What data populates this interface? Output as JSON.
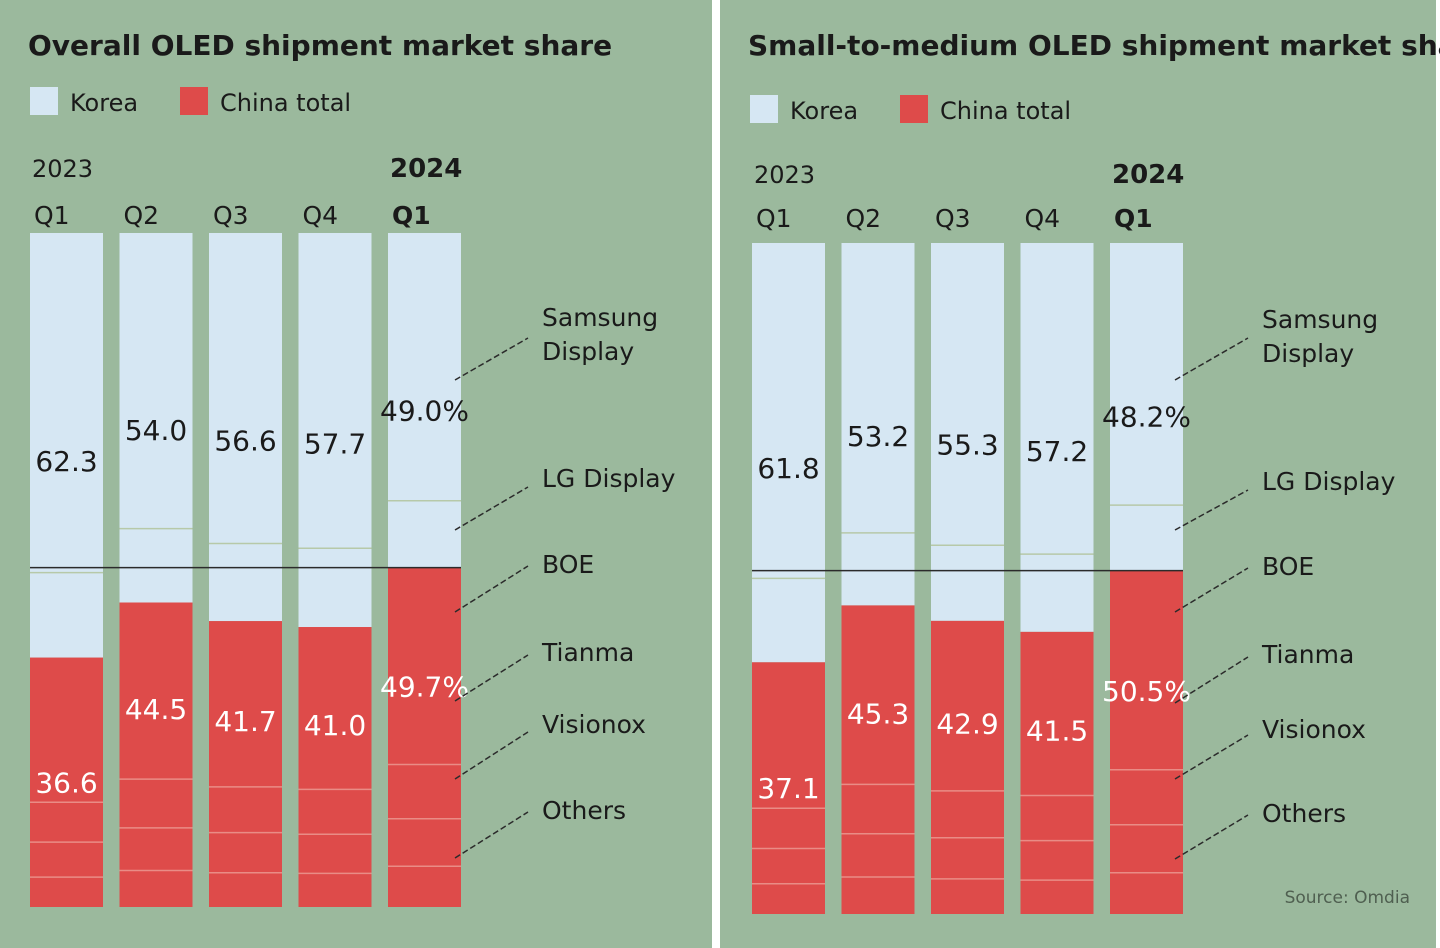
{
  "colors": {
    "background": "#9bb99d",
    "korea": "#d6e7f3",
    "china": "#de4b4a",
    "divider": "#ffffff",
    "text": "#1a1a1a",
    "china_label": "#ffffff",
    "leader": "#2b2b2b"
  },
  "source": "Source: Omdia",
  "chart_data": [
    {
      "type": "bar",
      "stacked": true,
      "title": "Overall OLED shipment market share",
      "legend": [
        {
          "name": "Korea",
          "color": "#d6e7f3"
        },
        {
          "name": "China total",
          "color": "#de4b4a"
        }
      ],
      "years": [
        {
          "label": "2023",
          "span": [
            "Q1",
            "Q2",
            "Q3",
            "Q4"
          ]
        },
        {
          "label": "2024",
          "span": [
            "Q1"
          ]
        }
      ],
      "categories": [
        "Q1",
        "Q2",
        "Q3",
        "Q4",
        "Q1"
      ],
      "series": [
        {
          "name": "Korea",
          "values": [
            62.3,
            54.0,
            56.6,
            57.7,
            49.0
          ],
          "labels": [
            "62.3",
            "54.0",
            "56.6",
            "57.7",
            "49.0%"
          ]
        },
        {
          "name": "China total",
          "values": [
            36.6,
            44.5,
            41.7,
            41.0,
            49.7
          ],
          "labels": [
            "36.6",
            "44.5",
            "41.7",
            "41.0",
            "49.7%"
          ]
        }
      ],
      "companies": [
        "Samsung Display",
        "LG Display",
        "BOE",
        "Tianma",
        "Visionox",
        "Others"
      ],
      "ylim": [
        0,
        100
      ]
    },
    {
      "type": "bar",
      "stacked": true,
      "title": "Small-to-medium OLED shipment market share",
      "legend": [
        {
          "name": "Korea",
          "color": "#d6e7f3"
        },
        {
          "name": "China total",
          "color": "#de4b4a"
        }
      ],
      "years": [
        {
          "label": "2023",
          "span": [
            "Q1",
            "Q2",
            "Q3",
            "Q4"
          ]
        },
        {
          "label": "2024",
          "span": [
            "Q1"
          ]
        }
      ],
      "categories": [
        "Q1",
        "Q2",
        "Q3",
        "Q4",
        "Q1"
      ],
      "series": [
        {
          "name": "Korea",
          "values": [
            61.8,
            53.2,
            55.3,
            57.2,
            48.2
          ],
          "labels": [
            "61.8",
            "53.2",
            "55.3",
            "57.2",
            "48.2%"
          ]
        },
        {
          "name": "China total",
          "values": [
            37.1,
            45.3,
            42.9,
            41.5,
            50.5
          ],
          "labels": [
            "37.1",
            "45.3",
            "42.9",
            "41.5",
            "50.5%"
          ]
        }
      ],
      "companies": [
        "Samsung Display",
        "LG Display",
        "BOE",
        "Tianma",
        "Visionox",
        "Others"
      ],
      "ylim": [
        0,
        100
      ]
    }
  ]
}
